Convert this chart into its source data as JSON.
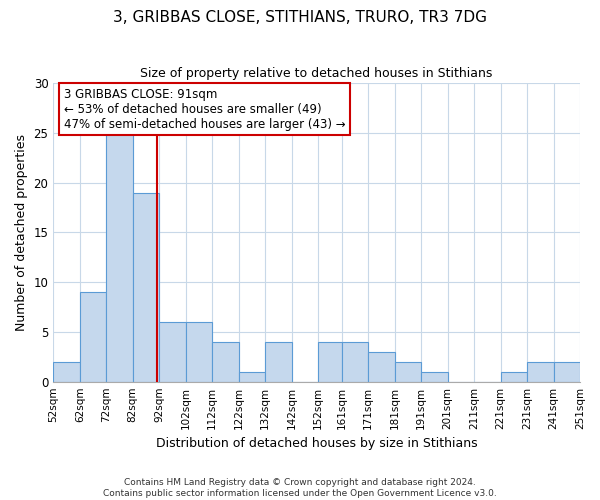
{
  "title": "3, GRIBBAS CLOSE, STITHIANS, TRURO, TR3 7DG",
  "subtitle": "Size of property relative to detached houses in Stithians",
  "xlabel": "Distribution of detached houses by size in Stithians",
  "ylabel": "Number of detached properties",
  "bin_edges": [
    52,
    62,
    72,
    82,
    92,
    102,
    112,
    122,
    132,
    142,
    152,
    161,
    171,
    181,
    191,
    201,
    211,
    221,
    231,
    241,
    251
  ],
  "bar_heights": [
    2,
    9,
    25,
    19,
    6,
    6,
    4,
    1,
    4,
    0,
    4,
    4,
    3,
    2,
    1,
    0,
    0,
    1,
    2,
    2
  ],
  "tick_labels": [
    "52sqm",
    "62sqm",
    "72sqm",
    "82sqm",
    "92sqm",
    "102sqm",
    "112sqm",
    "122sqm",
    "132sqm",
    "142sqm",
    "152sqm",
    "161sqm",
    "171sqm",
    "181sqm",
    "191sqm",
    "201sqm",
    "211sqm",
    "221sqm",
    "231sqm",
    "241sqm",
    "251sqm"
  ],
  "bar_color": "#c5d8ed",
  "bar_edge_color": "#5b9bd5",
  "property_line_x": 91,
  "property_line_color": "#cc0000",
  "annotation_box_color": "#cc0000",
  "annotation_text_line1": "3 GRIBBAS CLOSE: 91sqm",
  "annotation_text_line2": "← 53% of detached houses are smaller (49)",
  "annotation_text_line3": "47% of semi-detached houses are larger (43) →",
  "ylim": [
    0,
    30
  ],
  "yticks": [
    0,
    5,
    10,
    15,
    20,
    25,
    30
  ],
  "footer_line1": "Contains HM Land Registry data © Crown copyright and database right 2024.",
  "footer_line2": "Contains public sector information licensed under the Open Government Licence v3.0.",
  "background_color": "#ffffff",
  "grid_color": "#c8d8e8"
}
